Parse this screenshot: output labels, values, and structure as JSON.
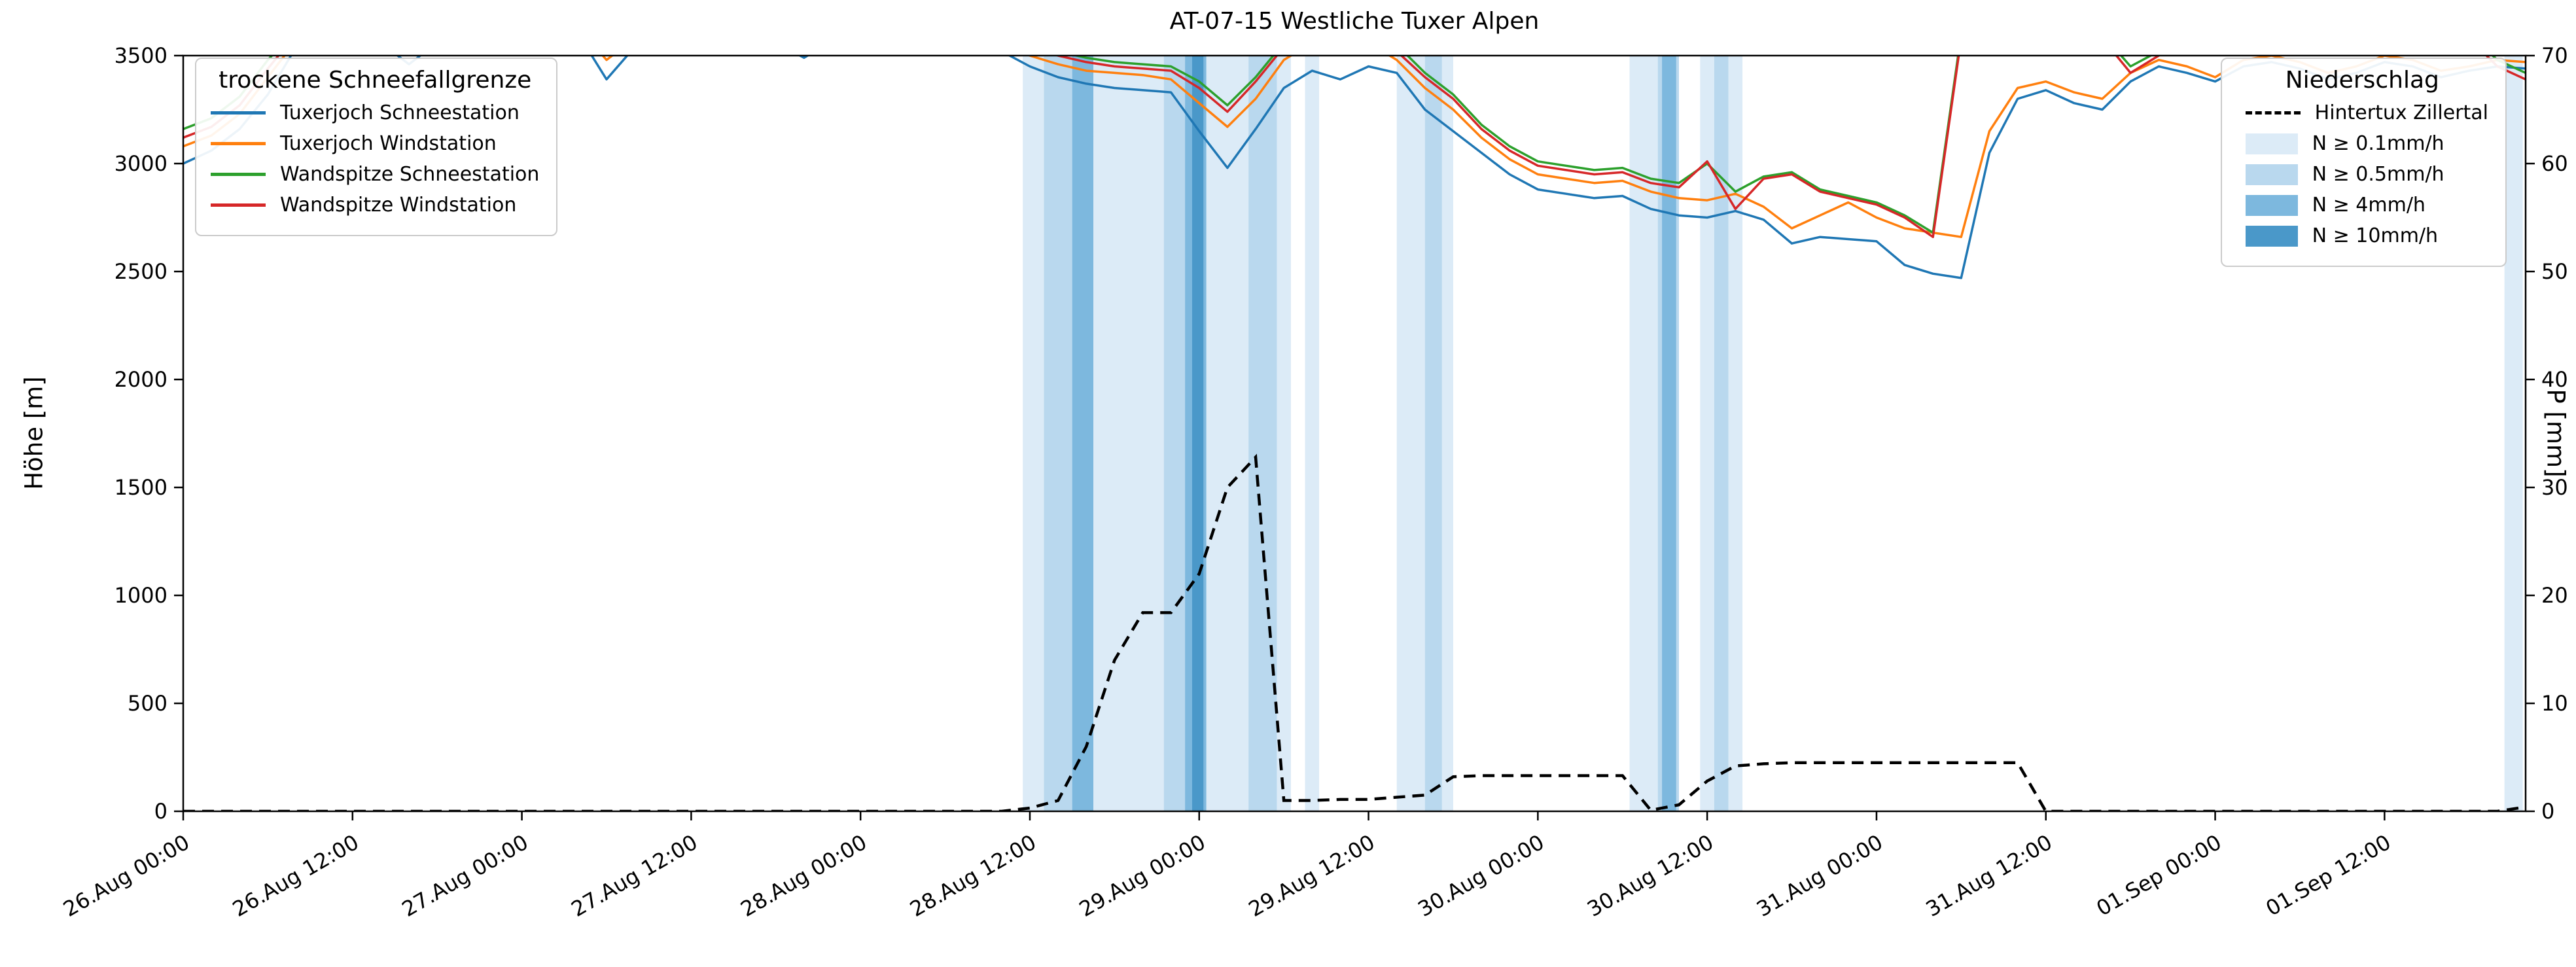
{
  "chart_data": {
    "type": "line",
    "title": "AT-07-15 Westliche Tuxer Alpen",
    "ylabel_left": "Höhe [m]",
    "ylabel_right": "P [mm]",
    "ylim_left": [
      0,
      3500
    ],
    "ylim_right": [
      0,
      70
    ],
    "xlim_hours": [
      0,
      166
    ],
    "time_step_hours": 2,
    "x_tick_hours": [
      0,
      12,
      24,
      36,
      48,
      60,
      72,
      84,
      96,
      108,
      120,
      132,
      144,
      156
    ],
    "x_tick_labels": [
      "26.Aug 00:00",
      "26.Aug 12:00",
      "27.Aug 00:00",
      "27.Aug 12:00",
      "28.Aug 00:00",
      "28.Aug 12:00",
      "29.Aug 00:00",
      "29.Aug 12:00",
      "30.Aug 00:00",
      "30.Aug 12:00",
      "31.Aug 00:00",
      "31.Aug 12:00",
      "01.Sep 00:00",
      "01.Sep 12:00"
    ],
    "y_ticks_left": [
      0,
      500,
      1000,
      1500,
      2000,
      2500,
      3000,
      3500
    ],
    "y_ticks_right": [
      0,
      10,
      20,
      30,
      40,
      50,
      60,
      70
    ],
    "legend_left_title": "trockene Schneefallgrenze",
    "legend_right_title": "Niederschlag",
    "series": [
      {
        "name": "Tuxerjoch Schneestation",
        "color": "#1f77b4",
        "values": [
          3000,
          3060,
          3160,
          3320,
          3540,
          3580,
          3600,
          3560,
          3460,
          3560,
          3600,
          3580,
          3600,
          3580,
          3600,
          3390,
          3540,
          3600,
          3580,
          3600,
          3600,
          3560,
          3490,
          3570,
          3600,
          3580,
          3600,
          3600,
          3580,
          3520,
          3450,
          3400,
          3370,
          3350,
          3340,
          3330,
          3150,
          2980,
          3160,
          3350,
          3430,
          3390,
          3450,
          3420,
          3250,
          3150,
          3050,
          2950,
          2880,
          2860,
          2840,
          2850,
          2790,
          2760,
          2750,
          2780,
          2740,
          2630,
          2660,
          2650,
          2640,
          2530,
          2490,
          2470,
          3050,
          3300,
          3340,
          3280,
          3250,
          3380,
          3450,
          3420,
          3380,
          3450,
          3470,
          3440,
          3390,
          3420,
          3470,
          3450,
          3400,
          3430,
          3450,
          3440
        ]
      },
      {
        "name": "Tuxerjoch Windstation",
        "color": "#ff7f0e",
        "values": [
          3080,
          3130,
          3230,
          3400,
          3570,
          3610,
          3630,
          3600,
          3520,
          3600,
          3630,
          3610,
          3630,
          3610,
          3630,
          3480,
          3580,
          3630,
          3610,
          3630,
          3630,
          3600,
          3550,
          3610,
          3630,
          3610,
          3630,
          3630,
          3610,
          3560,
          3500,
          3460,
          3430,
          3420,
          3410,
          3390,
          3280,
          3170,
          3300,
          3480,
          3560,
          3540,
          3560,
          3480,
          3350,
          3250,
          3120,
          3020,
          2950,
          2930,
          2910,
          2920,
          2870,
          2840,
          2830,
          2860,
          2800,
          2700,
          2760,
          2820,
          2750,
          2700,
          2680,
          2660,
          3150,
          3350,
          3380,
          3330,
          3300,
          3420,
          3480,
          3450,
          3400,
          3480,
          3500,
          3470,
          3420,
          3450,
          3500,
          3480,
          3430,
          3450,
          3480,
          3470
        ]
      },
      {
        "name": "Wandspitze Schneestation",
        "color": "#2ca02c",
        "values": [
          3160,
          3210,
          3310,
          3480,
          3620,
          3650,
          3660,
          3640,
          3580,
          3640,
          3660,
          3650,
          3660,
          3650,
          3660,
          3550,
          3630,
          3660,
          3650,
          3660,
          3660,
          3640,
          3600,
          3650,
          3660,
          3650,
          3660,
          3660,
          3650,
          3610,
          3560,
          3520,
          3490,
          3470,
          3460,
          3450,
          3380,
          3270,
          3400,
          3560,
          3650,
          3640,
          3650,
          3550,
          3420,
          3320,
          3180,
          3080,
          3010,
          2990,
          2970,
          2980,
          2930,
          2910,
          3000,
          2870,
          2940,
          2960,
          2880,
          2850,
          2820,
          2760,
          2680,
          3600,
          3650,
          3650,
          3650,
          3640,
          3600,
          3450,
          3520,
          3600,
          3650,
          3650,
          3620,
          3580,
          3550,
          3600,
          3650,
          3620,
          3560,
          3600,
          3480,
          3420
        ]
      },
      {
        "name": "Wandspitze Windstation",
        "color": "#d62728",
        "values": [
          3120,
          3170,
          3270,
          3440,
          3600,
          3630,
          3640,
          3620,
          3550,
          3620,
          3640,
          3630,
          3640,
          3630,
          3640,
          3520,
          3600,
          3640,
          3630,
          3640,
          3640,
          3620,
          3580,
          3630,
          3640,
          3630,
          3640,
          3640,
          3630,
          3590,
          3540,
          3500,
          3470,
          3450,
          3440,
          3430,
          3350,
          3240,
          3380,
          3540,
          3630,
          3620,
          3630,
          3520,
          3400,
          3300,
          3160,
          3060,
          2990,
          2970,
          2950,
          2960,
          2910,
          2890,
          3010,
          2790,
          2930,
          2950,
          2870,
          2840,
          2810,
          2750,
          2660,
          3580,
          3630,
          3630,
          3630,
          3620,
          3580,
          3420,
          3500,
          3580,
          3630,
          3630,
          3600,
          3560,
          3530,
          3580,
          3630,
          3600,
          3540,
          3580,
          3450,
          3390
        ]
      }
    ],
    "precip_line": {
      "name": "Hintertux Zillertal",
      "color": "#000000",
      "axis": "right",
      "dashed": true,
      "values": [
        0,
        0,
        0,
        0,
        0,
        0,
        0,
        0,
        0,
        0,
        0,
        0,
        0,
        0,
        0,
        0,
        0,
        0,
        0,
        0,
        0,
        0,
        0,
        0,
        0,
        0,
        0,
        0,
        0,
        0,
        0.3,
        1,
        6,
        14,
        18.4,
        18.4,
        22,
        30,
        32.8,
        1,
        1,
        1.1,
        1.1,
        1.3,
        1.5,
        3.2,
        3.3,
        3.3,
        3.3,
        3.3,
        3.3,
        3.3,
        0.1,
        0.6,
        2.8,
        4.2,
        4.4,
        4.5,
        4.5,
        4.5,
        4.5,
        4.5,
        4.5,
        4.5,
        4.5,
        4.5,
        0,
        0,
        0,
        0,
        0,
        0,
        0,
        0,
        0,
        0,
        0,
        0,
        0,
        0,
        0,
        0,
        0,
        0.4
      ]
    },
    "precip_levels": [
      {
        "label": "N ≥ 0.1mm/h",
        "color": "#dcebf7"
      },
      {
        "label": "N ≥ 0.5mm/h",
        "color": "#b9d8ee"
      },
      {
        "label": "N ≥ 4mm/h",
        "color": "#7db8de"
      },
      {
        "label": "N ≥ 10mm/h",
        "color": "#4a98c9"
      }
    ],
    "precip_spans": [
      {
        "start_h": 59.5,
        "end_h": 78.5,
        "level": 0
      },
      {
        "start_h": 61.0,
        "end_h": 63.0,
        "level": 1
      },
      {
        "start_h": 63.0,
        "end_h": 64.5,
        "level": 2
      },
      {
        "start_h": 69.5,
        "end_h": 72.5,
        "level": 1
      },
      {
        "start_h": 71.0,
        "end_h": 72.5,
        "level": 2
      },
      {
        "start_h": 71.5,
        "end_h": 72.3,
        "level": 3
      },
      {
        "start_h": 75.5,
        "end_h": 77.5,
        "level": 1
      },
      {
        "start_h": 79.5,
        "end_h": 80.5,
        "level": 0
      },
      {
        "start_h": 86.0,
        "end_h": 90.0,
        "level": 0
      },
      {
        "start_h": 88.0,
        "end_h": 89.2,
        "level": 1
      },
      {
        "start_h": 102.5,
        "end_h": 104.5,
        "level": 0
      },
      {
        "start_h": 104.5,
        "end_h": 106.0,
        "level": 1
      },
      {
        "start_h": 104.8,
        "end_h": 105.8,
        "level": 2
      },
      {
        "start_h": 107.5,
        "end_h": 110.5,
        "level": 0
      },
      {
        "start_h": 108.5,
        "end_h": 109.5,
        "level": 1
      },
      {
        "start_h": 164.5,
        "end_h": 165.8,
        "level": 0
      }
    ]
  }
}
